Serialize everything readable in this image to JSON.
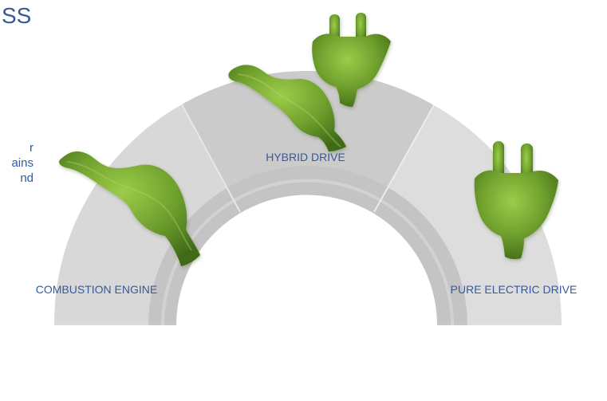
{
  "heading": {
    "fragment": "SS"
  },
  "intro_fragments": {
    "line1": "r",
    "line2": "ains",
    "line3": "nd"
  },
  "diagram": {
    "stages": [
      {
        "label": "COMBUSTION ENGINE"
      },
      {
        "label": "HYBRID DRIVE"
      },
      {
        "label": "PURE ELECTRIC DRIVE"
      }
    ]
  },
  "colors": {
    "text_blue": "#355a9a",
    "arc_outer": "#d9d9d9",
    "arc_mid": "#cfcfcf",
    "arc_inner": "#bdbdbd",
    "foliage_dark": "#4f7a1d",
    "foliage_light": "#8fbc3c"
  }
}
